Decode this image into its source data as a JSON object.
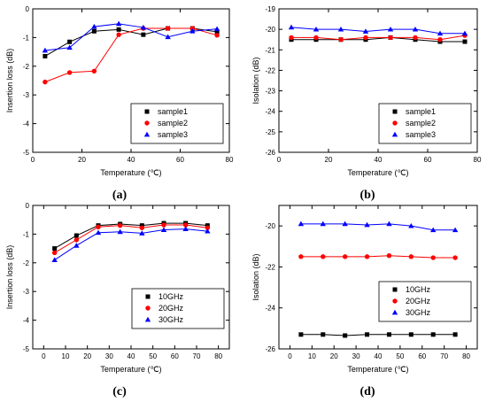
{
  "chart_data": [
    {
      "id": "a",
      "type": "line",
      "panel_label": "(a)",
      "xlabel": "Temperature (℃)",
      "ylabel": "Insertion loss (dB)",
      "xlim": [
        0,
        80
      ],
      "ylim": [
        -5,
        0
      ],
      "xticks": [
        0,
        20,
        40,
        60,
        80
      ],
      "yticks": [
        0,
        -1,
        -2,
        -3,
        -4,
        -5
      ],
      "x": [
        5,
        15,
        25,
        35,
        45,
        55,
        65,
        75
      ],
      "legend_position": "lower-right",
      "series": [
        {
          "name": "sample1",
          "color": "#000000",
          "marker": "square",
          "values": [
            -1.65,
            -1.15,
            -0.78,
            -0.72,
            -0.9,
            -0.68,
            -0.68,
            -0.8
          ]
        },
        {
          "name": "sample2",
          "color": "#ff0000",
          "marker": "circle",
          "values": [
            -2.55,
            -2.22,
            -2.17,
            -0.9,
            -0.68,
            -0.68,
            -0.68,
            -0.92
          ]
        },
        {
          "name": "sample3",
          "color": "#0000ff",
          "marker": "triangle",
          "values": [
            -1.45,
            -1.35,
            -0.62,
            -0.52,
            -0.65,
            -0.98,
            -0.78,
            -0.7
          ]
        }
      ]
    },
    {
      "id": "b",
      "type": "line",
      "panel_label": "(b)",
      "xlabel": "Temperature (℃)",
      "ylabel": "Isolation (dB)",
      "xlim": [
        0,
        80
      ],
      "ylim": [
        -26,
        -19
      ],
      "xticks": [
        0,
        20,
        40,
        60,
        80
      ],
      "yticks": [
        -19,
        -20,
        -21,
        -22,
        -23,
        -24,
        -25,
        -26
      ],
      "x": [
        5,
        15,
        25,
        35,
        45,
        55,
        65,
        75
      ],
      "legend_position": "right",
      "series": [
        {
          "name": "sample1",
          "color": "#000000",
          "marker": "square",
          "values": [
            -20.5,
            -20.5,
            -20.5,
            -20.5,
            -20.4,
            -20.5,
            -20.6,
            -20.6
          ]
        },
        {
          "name": "sample2",
          "color": "#ff0000",
          "marker": "circle",
          "values": [
            -20.4,
            -20.4,
            -20.5,
            -20.4,
            -20.4,
            -20.4,
            -20.5,
            -20.3
          ]
        },
        {
          "name": "sample3",
          "color": "#0000ff",
          "marker": "triangle",
          "values": [
            -19.9,
            -20.0,
            -20.0,
            -20.1,
            -20.0,
            -20.0,
            -20.2,
            -20.2
          ]
        }
      ]
    },
    {
      "id": "c",
      "type": "line",
      "panel_label": "(c)",
      "xlabel": "Temperature (℃)",
      "ylabel": "Insertion loss (dB)",
      "xlim": [
        -5,
        85
      ],
      "ylim": [
        -5,
        0
      ],
      "xticks": [
        0,
        10,
        20,
        30,
        40,
        50,
        60,
        70,
        80
      ],
      "yticks": [
        0,
        -1,
        -2,
        -3,
        -4,
        -5
      ],
      "x": [
        5,
        15,
        25,
        35,
        45,
        55,
        65,
        75
      ],
      "legend_position": "lower-right",
      "series": [
        {
          "name": "10GHz",
          "color": "#000000",
          "marker": "square",
          "values": [
            -1.5,
            -1.05,
            -0.7,
            -0.65,
            -0.7,
            -0.62,
            -0.62,
            -0.7
          ]
        },
        {
          "name": "20GHz",
          "color": "#ff0000",
          "marker": "circle",
          "values": [
            -1.65,
            -1.2,
            -0.75,
            -0.7,
            -0.78,
            -0.68,
            -0.68,
            -0.78
          ]
        },
        {
          "name": "30GHz",
          "color": "#0000ff",
          "marker": "triangle",
          "values": [
            -1.9,
            -1.4,
            -0.95,
            -0.92,
            -0.97,
            -0.85,
            -0.82,
            -0.9
          ]
        }
      ]
    },
    {
      "id": "d",
      "type": "line",
      "panel_label": "(d)",
      "xlabel": "Temperature (℃)",
      "ylabel": "Isolation (dB)",
      "xlim": [
        -5,
        85
      ],
      "ylim": [
        -26,
        -19
      ],
      "xticks": [
        0,
        10,
        20,
        30,
        40,
        50,
        60,
        70,
        80
      ],
      "yticks": [
        -20,
        -22,
        -24,
        -26
      ],
      "x": [
        5,
        15,
        25,
        35,
        45,
        55,
        65,
        75
      ],
      "legend_position": "lower-right",
      "series": [
        {
          "name": "10GHz",
          "color": "#000000",
          "marker": "square",
          "values": [
            -25.3,
            -25.3,
            -25.35,
            -25.3,
            -25.3,
            -25.3,
            -25.3,
            -25.3
          ]
        },
        {
          "name": "20GHz",
          "color": "#ff0000",
          "marker": "circle",
          "values": [
            -21.5,
            -21.5,
            -21.5,
            -21.5,
            -21.45,
            -21.5,
            -21.55,
            -21.55
          ]
        },
        {
          "name": "30GHz",
          "color": "#0000ff",
          "marker": "triangle",
          "values": [
            -19.9,
            -19.9,
            -19.9,
            -19.95,
            -19.9,
            -20.0,
            -20.2,
            -20.2
          ]
        }
      ]
    }
  ]
}
